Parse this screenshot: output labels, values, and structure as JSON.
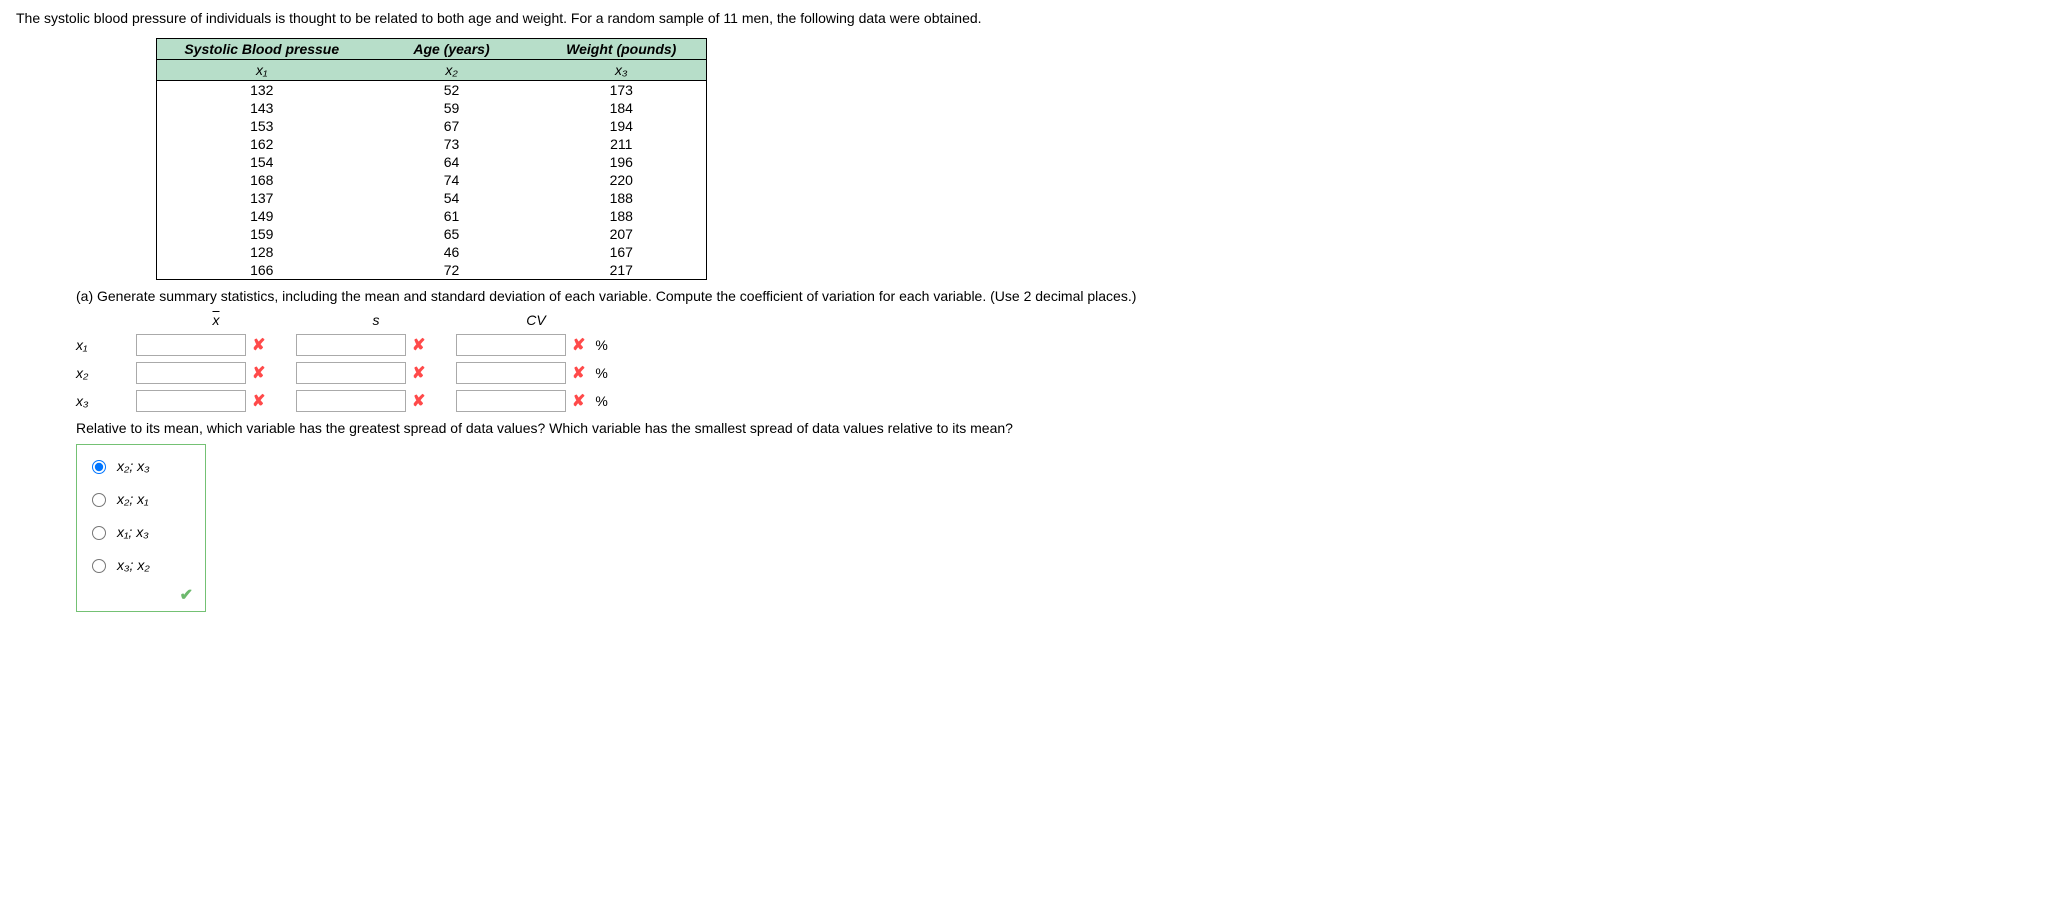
{
  "prompt": "The systolic blood pressure of individuals is thought to be related to both age and weight. For a random sample of 11 men, the following data were obtained.",
  "table": {
    "headers": {
      "sbp": "Systolic Blood pressue",
      "age": "Age (years)",
      "weight": "Weight (pounds)",
      "sbp_sub": "x₁",
      "age_sub": "x₂",
      "weight_sub": "x₃"
    },
    "rows": [
      [
        132,
        52,
        173
      ],
      [
        143,
        59,
        184
      ],
      [
        153,
        67,
        194
      ],
      [
        162,
        73,
        211
      ],
      [
        154,
        64,
        196
      ],
      [
        168,
        74,
        220
      ],
      [
        137,
        54,
        188
      ],
      [
        149,
        61,
        188
      ],
      [
        159,
        65,
        207
      ],
      [
        128,
        46,
        167
      ],
      [
        166,
        72,
        217
      ]
    ]
  },
  "part_a": "(a) Generate summary statistics, including the mean and standard deviation of each variable. Compute the coefficient of variation for each variable. (Use 2 decimal places.)",
  "stats": {
    "col_headers": {
      "mean": "x",
      "sd": "s",
      "cv": "CV"
    },
    "row_labels": {
      "x1": "x₁",
      "x2": "x₂",
      "x3": "x₃"
    },
    "pct_symbol": "%"
  },
  "followup": "Relative to its mean, which variable has the greatest spread of data values? Which variable has the smallest spread of data values relative to its mean?",
  "options": {
    "o1": "x₂; x₃",
    "o2": "x₂; x₁",
    "o3": "x₁; x₃",
    "o4": "x₃; x₂"
  },
  "colors": {
    "header_bg": "#b7dec9",
    "x_mark": "#ff4a4a",
    "check": "#6db96d",
    "radio_border": "#74c174"
  }
}
